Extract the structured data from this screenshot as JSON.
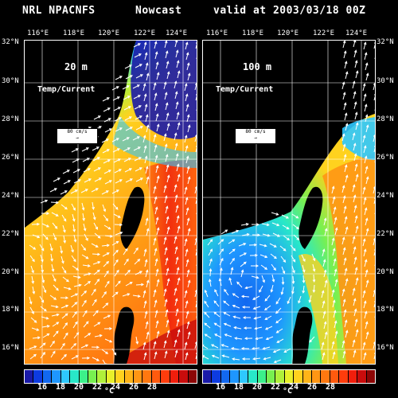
{
  "header": {
    "model": "NRL NPACNFS",
    "run": "Nowcast",
    "valid": "valid at 2003/03/18 00Z"
  },
  "lon_ticks": [
    "116°E",
    "118°E",
    "120°E",
    "122°E",
    "124°E"
  ],
  "lat_ticks": [
    "32°N",
    "30°N",
    "28°N",
    "26°N",
    "24°N",
    "22°N",
    "20°N",
    "18°N",
    "16°N"
  ],
  "panels": [
    {
      "depth": "20 m",
      "field": "Temp/Current",
      "reference_vector": {
        "label": "80 cm/s"
      }
    },
    {
      "depth": "100 m",
      "field": "Temp/Current",
      "reference_vector": {
        "label": "80 cm/s"
      }
    }
  ],
  "colorbar": {
    "labels": [
      "16",
      "18",
      "20",
      "22",
      "24",
      "26",
      "28"
    ],
    "unit": "°C",
    "colors": [
      "#1a1aa8",
      "#0d3be0",
      "#1268f0",
      "#1e96ff",
      "#2ec8ff",
      "#28e8c8",
      "#3cf08a",
      "#78f050",
      "#b0f03a",
      "#e8f02a",
      "#ffd21e",
      "#ffb418",
      "#ff9614",
      "#ff7810",
      "#ff5a0e",
      "#ff3c0c",
      "#f01e0c",
      "#c80c0c",
      "#8c0606"
    ]
  },
  "colors": {
    "land": "#000000",
    "grid": "#ffffff",
    "vectors": "#ffffff"
  }
}
